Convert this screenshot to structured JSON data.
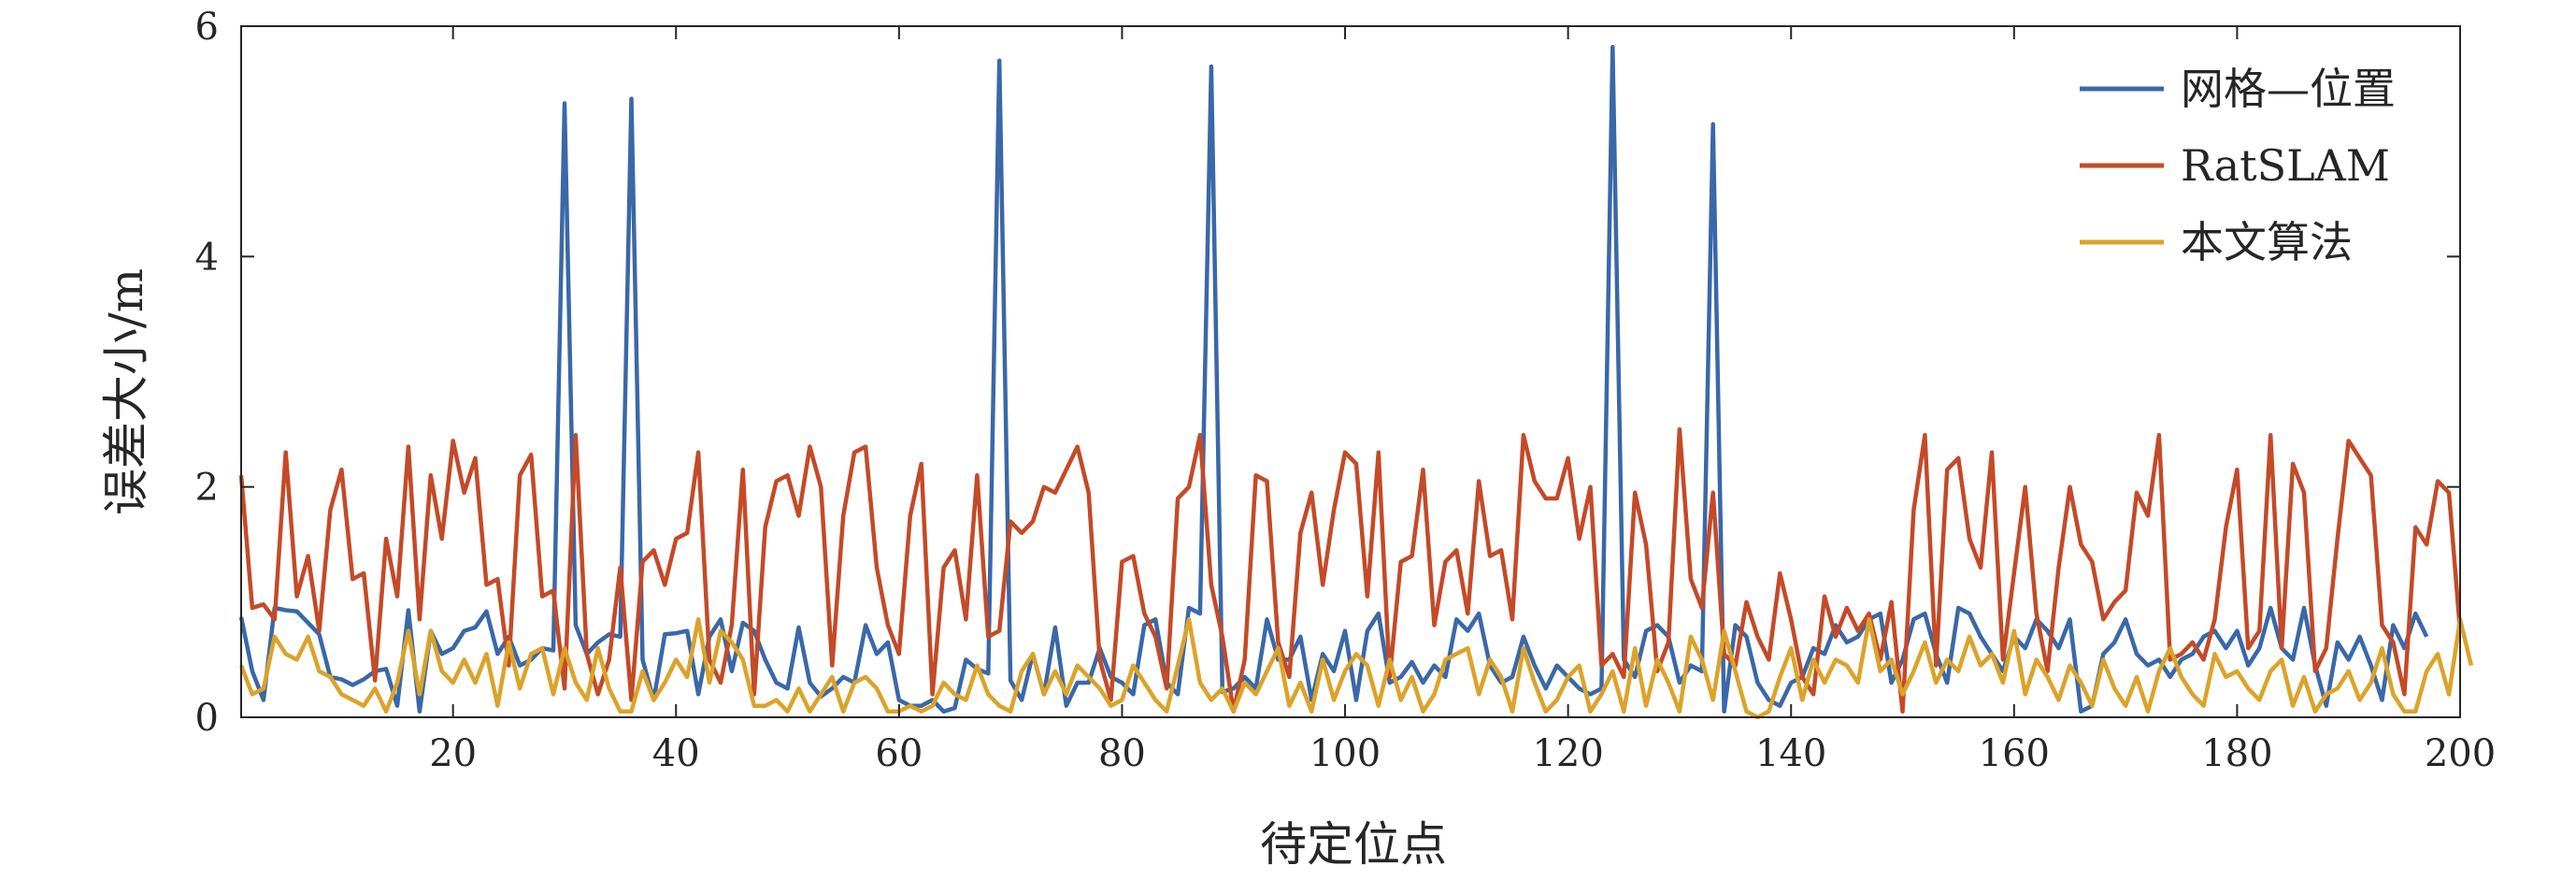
{
  "chart_data": {
    "type": "line",
    "xlabel": "待定位点",
    "ylabel": "误差大小/m",
    "xlim": [
      1,
      200
    ],
    "ylim": [
      0,
      6
    ],
    "xticks": [
      20,
      40,
      60,
      80,
      100,
      120,
      140,
      160,
      180,
      200
    ],
    "yticks": [
      0,
      2,
      4,
      6
    ],
    "grid": false,
    "legend_position": "top-right",
    "series": [
      {
        "name": "网格—位置",
        "color": "#3a68a8",
        "values": [
          0.87,
          0.4,
          0.15,
          0.95,
          0.93,
          0.92,
          0.82,
          0.72,
          0.35,
          0.33,
          0.28,
          0.33,
          0.4,
          0.42,
          0.1,
          0.93,
          0.05,
          0.75,
          0.55,
          0.6,
          0.75,
          0.78,
          0.92,
          0.55,
          0.7,
          0.45,
          0.5,
          0.6,
          0.58,
          5.33,
          0.8,
          0.55,
          0.65,
          0.72,
          0.7,
          5.37,
          0.5,
          0.15,
          0.72,
          0.73,
          0.75,
          0.2,
          0.7,
          0.85,
          0.4,
          0.82,
          0.75,
          0.5,
          0.3,
          0.25,
          0.78,
          0.3,
          0.18,
          0.25,
          0.35,
          0.3,
          0.8,
          0.55,
          0.65,
          0.15,
          0.1,
          0.1,
          0.15,
          0.05,
          0.08,
          0.5,
          0.42,
          0.38,
          5.7,
          0.32,
          0.15,
          0.55,
          0.2,
          0.78,
          0.1,
          0.3,
          0.3,
          0.6,
          0.35,
          0.3,
          0.2,
          0.8,
          0.85,
          0.3,
          0.2,
          0.95,
          0.9,
          5.65,
          0.22,
          0.25,
          0.35,
          0.25,
          0.85,
          0.5,
          0.5,
          0.7,
          0.15,
          0.55,
          0.4,
          0.75,
          0.15,
          0.75,
          0.9,
          0.3,
          0.35,
          0.48,
          0.3,
          0.45,
          0.35,
          0.85,
          0.75,
          0.9,
          0.45,
          0.3,
          0.35,
          0.7,
          0.45,
          0.25,
          0.45,
          0.35,
          0.25,
          0.2,
          0.25,
          5.82,
          0.5,
          0.35,
          0.75,
          0.8,
          0.7,
          0.3,
          0.45,
          0.4,
          5.15,
          0.05,
          0.8,
          0.7,
          0.3,
          0.15,
          0.1,
          0.3,
          0.35,
          0.6,
          0.55,
          0.8,
          0.65,
          0.7,
          0.85,
          0.9,
          0.3,
          0.5,
          0.85,
          0.9,
          0.55,
          0.3,
          0.95,
          0.9,
          0.7,
          0.55,
          0.4,
          0.7,
          0.6,
          0.85,
          0.75,
          0.6,
          0.85,
          0.05,
          0.1,
          0.55,
          0.65,
          0.85,
          0.55,
          0.45,
          0.5,
          0.35,
          0.5,
          0.55,
          0.7,
          0.75,
          0.6,
          0.75,
          0.45,
          0.6,
          0.95,
          0.6,
          0.5,
          0.95,
          0.45,
          0.1,
          0.65,
          0.5,
          0.7,
          0.45,
          0.15,
          0.8,
          0.6,
          0.9,
          0.7
        ]
      },
      {
        "name": "RatSLAM",
        "color": "#c44a28",
        "values": [
          2.1,
          0.95,
          0.98,
          0.85,
          2.3,
          1.05,
          1.4,
          0.75,
          1.8,
          2.15,
          1.2,
          1.25,
          0.32,
          1.55,
          1.05,
          2.35,
          0.85,
          2.1,
          1.55,
          2.4,
          1.95,
          2.25,
          1.15,
          1.2,
          0.45,
          2.1,
          2.28,
          1.05,
          1.1,
          0.25,
          2.45,
          0.55,
          0.2,
          0.5,
          1.3,
          0.15,
          1.35,
          1.45,
          1.15,
          1.55,
          1.6,
          2.3,
          0.5,
          0.3,
          0.8,
          2.15,
          0.2,
          1.65,
          2.05,
          2.1,
          1.75,
          2.35,
          2.0,
          0.45,
          1.75,
          2.3,
          2.35,
          1.3,
          0.8,
          0.55,
          1.75,
          2.2,
          0.2,
          1.3,
          1.45,
          0.85,
          2.1,
          0.7,
          0.75,
          1.7,
          1.6,
          1.7,
          2.0,
          1.95,
          2.15,
          2.35,
          1.95,
          0.5,
          0.15,
          1.35,
          1.4,
          0.9,
          0.7,
          0.25,
          1.9,
          2.0,
          2.45,
          1.15,
          0.7,
          0.05,
          0.5,
          2.1,
          2.05,
          0.65,
          0.35,
          1.6,
          1.95,
          1.15,
          1.8,
          2.3,
          2.2,
          1.05,
          2.3,
          0.35,
          1.35,
          1.4,
          2.15,
          0.8,
          1.35,
          1.45,
          0.9,
          2.05,
          1.4,
          1.45,
          0.85,
          2.45,
          2.05,
          1.9,
          1.9,
          2.25,
          1.55,
          2.0,
          0.45,
          0.55,
          0.35,
          1.95,
          1.5,
          0.4,
          0.65,
          2.5,
          1.2,
          0.95,
          1.95,
          0.55,
          0.45,
          1.0,
          0.7,
          0.5,
          1.25,
          0.85,
          0.35,
          0.2,
          1.05,
          0.7,
          0.95,
          0.75,
          0.9,
          0.5,
          1.0,
          0.05,
          1.8,
          2.45,
          0.45,
          2.15,
          2.25,
          1.55,
          1.3,
          2.3,
          0.5,
          1.25,
          2.0,
          0.9,
          0.4,
          1.3,
          2.0,
          1.5,
          1.35,
          0.85,
          1.0,
          1.1,
          1.95,
          1.75,
          2.45,
          0.5,
          0.55,
          0.65,
          0.5,
          0.85,
          1.65,
          2.15,
          0.6,
          0.75,
          2.45,
          0.6,
          2.2,
          1.95,
          0.4,
          0.6,
          1.55,
          2.4,
          2.25,
          2.1,
          0.8,
          0.65,
          0.2,
          1.65,
          1.5,
          2.05,
          1.95,
          0.75
        ]
      },
      {
        "name": "本文算法",
        "color": "#dba32a",
        "values": [
          0.45,
          0.2,
          0.25,
          0.7,
          0.55,
          0.5,
          0.7,
          0.4,
          0.35,
          0.2,
          0.15,
          0.1,
          0.25,
          0.05,
          0.3,
          0.75,
          0.2,
          0.75,
          0.4,
          0.3,
          0.5,
          0.3,
          0.55,
          0.1,
          0.65,
          0.25,
          0.55,
          0.6,
          0.2,
          0.6,
          0.3,
          0.15,
          0.6,
          0.25,
          0.05,
          0.05,
          0.4,
          0.15,
          0.3,
          0.5,
          0.35,
          0.85,
          0.3,
          0.75,
          0.65,
          0.5,
          0.1,
          0.1,
          0.15,
          0.05,
          0.25,
          0.05,
          0.2,
          0.35,
          0.05,
          0.3,
          0.35,
          0.25,
          0.05,
          0.05,
          0.1,
          0.05,
          0.1,
          0.3,
          0.2,
          0.15,
          0.45,
          0.2,
          0.1,
          0.05,
          0.4,
          0.55,
          0.2,
          0.4,
          0.2,
          0.45,
          0.35,
          0.25,
          0.1,
          0.15,
          0.45,
          0.3,
          0.15,
          0.05,
          0.45,
          0.85,
          0.3,
          0.15,
          0.25,
          0.05,
          0.3,
          0.2,
          0.4,
          0.6,
          0.1,
          0.3,
          0.05,
          0.5,
          0.15,
          0.4,
          0.55,
          0.45,
          0.1,
          0.5,
          0.15,
          0.35,
          0.05,
          0.2,
          0.5,
          0.55,
          0.6,
          0.2,
          0.5,
          0.35,
          0.05,
          0.6,
          0.3,
          0.05,
          0.15,
          0.35,
          0.45,
          0.05,
          0.2,
          0.4,
          0.05,
          0.6,
          0.1,
          0.5,
          0.3,
          0.05,
          0.7,
          0.5,
          0.15,
          0.75,
          0.4,
          0.05,
          0.0,
          0.05,
          0.35,
          0.6,
          0.15,
          0.5,
          0.3,
          0.5,
          0.45,
          0.3,
          0.85,
          0.4,
          0.5,
          0.2,
          0.4,
          0.65,
          0.3,
          0.5,
          0.4,
          0.7,
          0.45,
          0.55,
          0.3,
          0.75,
          0.2,
          0.5,
          0.35,
          0.15,
          0.45,
          0.3,
          0.1,
          0.5,
          0.25,
          0.1,
          0.35,
          0.05,
          0.4,
          0.6,
          0.35,
          0.2,
          0.1,
          0.55,
          0.35,
          0.4,
          0.25,
          0.15,
          0.4,
          0.5,
          0.1,
          0.35,
          0.05,
          0.2,
          0.25,
          0.4,
          0.15,
          0.3,
          0.6,
          0.2,
          0.05,
          0.05,
          0.4,
          0.55,
          0.2,
          0.85,
          0.45
        ]
      }
    ]
  }
}
